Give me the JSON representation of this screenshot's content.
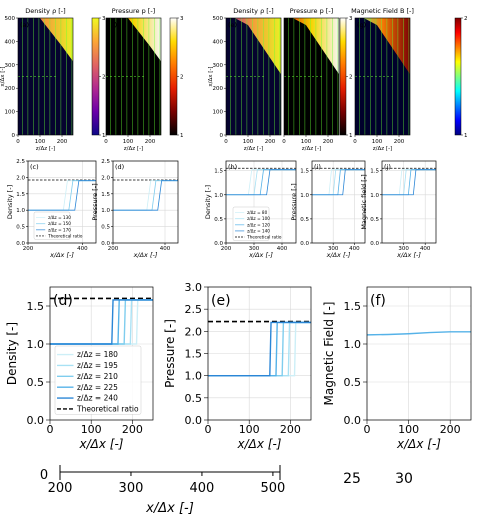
{
  "colors": {
    "density_cmap": [
      "#0d0887",
      "#6a00a8",
      "#b12a90",
      "#e16462",
      "#fca636",
      "#f0f921"
    ],
    "pressure_cmap": [
      "#000000",
      "#780000",
      "#e61e00",
      "#ff7800",
      "#ffdc00",
      "#ffffff"
    ],
    "bfield_cmap": [
      "#00007f",
      "#0000ff",
      "#007fff",
      "#00ffff",
      "#7fff7f",
      "#ffff00",
      "#ff7f00",
      "#ff0000",
      "#7f0000"
    ],
    "streamline": "#66ff33",
    "series": [
      "#cdeff7",
      "#a8e1f4",
      "#7fcdee",
      "#55b2e8",
      "#2b86d6"
    ],
    "theory": "#000000",
    "grid": "#d9d9d9"
  },
  "chart_data": [
    {
      "id": "map-a",
      "type": "heatmap",
      "panel_label": "(a)",
      "title": "Density ρ [-]",
      "cmap": "density_cmap",
      "field": "density",
      "xlabel": "z/Δz [-]",
      "ylabel": "x/Δx [-]",
      "xlim": [
        0,
        250
      ],
      "ylim": [
        0,
        500
      ],
      "xticks": [
        0,
        100,
        200
      ],
      "yticks": [
        0,
        100,
        200,
        300,
        400,
        500
      ],
      "colorbar": {
        "min": 1,
        "max": 3,
        "ticks": [
          1,
          2,
          3
        ]
      },
      "shock_front": [
        [
          0,
          520
        ],
        [
          100,
          500
        ],
        [
          200,
          380
        ],
        [
          250,
          315
        ]
      ],
      "streamlines_z": [
        20,
        45,
        70,
        95,
        120,
        145,
        170,
        195,
        220,
        245
      ]
    },
    {
      "id": "map-b",
      "type": "heatmap",
      "panel_label": "(b)",
      "title": "Pressure p [-]",
      "cmap": "pressure_cmap",
      "field": "pressure",
      "xlabel": "z/Δz [-]",
      "ylabel": "",
      "xlim": [
        0,
        250
      ],
      "ylim": [
        0,
        500
      ],
      "xticks": [
        0,
        100,
        200
      ],
      "yticks": [],
      "colorbar": {
        "min": 1,
        "max": 3,
        "ticks": [
          1,
          2,
          3
        ]
      },
      "shock_front": [
        [
          0,
          520
        ],
        [
          100,
          500
        ],
        [
          200,
          380
        ],
        [
          250,
          315
        ]
      ],
      "streamlines_z": [
        20,
        45,
        70,
        95,
        120,
        145,
        170,
        195,
        220,
        245
      ]
    },
    {
      "id": "map-e",
      "type": "heatmap",
      "panel_label": "(e)",
      "title": "Density ρ [-]",
      "cmap": "density_cmap",
      "field": "density",
      "xlabel": "z/Δz [-]",
      "ylabel": "x/Δx [-]",
      "xlim": [
        0,
        250
      ],
      "ylim": [
        0,
        500
      ],
      "xticks": [
        0,
        100,
        200
      ],
      "yticks": [
        0,
        100,
        200,
        300,
        400,
        500
      ],
      "colorbar": null,
      "shock_front": [
        [
          0,
          520
        ],
        [
          100,
          470
        ],
        [
          200,
          330
        ],
        [
          250,
          260
        ]
      ],
      "streamlines_z": [
        20,
        45,
        70,
        95,
        120,
        145,
        170,
        195,
        220,
        245
      ]
    },
    {
      "id": "map-f",
      "type": "heatmap",
      "panel_label": "(f)",
      "title": "Pressure p [-]",
      "cmap": "pressure_cmap",
      "field": "pressure",
      "xlabel": "z/Δz [-]",
      "ylabel": "",
      "xlim": [
        0,
        250
      ],
      "ylim": [
        0,
        500
      ],
      "xticks": [
        0,
        100,
        200
      ],
      "yticks": [],
      "colorbar": {
        "min": 1,
        "max": 3,
        "ticks": [
          1,
          2,
          3
        ]
      },
      "shock_front": [
        [
          0,
          520
        ],
        [
          100,
          470
        ],
        [
          200,
          330
        ],
        [
          250,
          260
        ]
      ],
      "streamlines_z": [
        20,
        45,
        70,
        95,
        120,
        145,
        170,
        195,
        220,
        245
      ]
    },
    {
      "id": "map-g",
      "type": "heatmap",
      "panel_label": "(g)",
      "title": "Magnetic Field B [-]",
      "cmap": "bfield_cmap",
      "field": "bfield",
      "xlabel": "z/Δz [-]",
      "ylabel": "",
      "xlim": [
        0,
        250
      ],
      "ylim": [
        0,
        500
      ],
      "xticks": [
        0,
        100,
        200
      ],
      "yticks": [],
      "colorbar": {
        "min": 1,
        "max": 2,
        "ticks": [
          1,
          2
        ]
      },
      "shock_front": [
        [
          0,
          520
        ],
        [
          100,
          470
        ],
        [
          200,
          330
        ],
        [
          250,
          260
        ]
      ],
      "streamlines_z": [
        20,
        45,
        70,
        95,
        120,
        145,
        170,
        195,
        220,
        245
      ]
    },
    {
      "id": "prof-c",
      "type": "line",
      "panel_label": "(c)",
      "xlabel": "x/Δx [-]",
      "ylabel": "Density [-]",
      "xlim": [
        200,
        450
      ],
      "ylim": [
        0,
        2.5
      ],
      "xticks": [
        200,
        400
      ],
      "yticks": [
        0.0,
        0.5,
        1.0,
        1.5,
        2.0,
        2.5
      ],
      "theory": 1.92,
      "series": [
        {
          "name": "z/Δz = 130",
          "x": [
            200,
            330,
            345,
            450
          ],
          "y": [
            1.0,
            1.0,
            1.9,
            1.9
          ]
        },
        {
          "name": "z/Δz = 150",
          "x": [
            200,
            350,
            365,
            450
          ],
          "y": [
            1.0,
            1.0,
            1.9,
            1.9
          ]
        },
        {
          "name": "z/Δz = 170",
          "x": [
            200,
            372,
            387,
            450
          ],
          "y": [
            1.0,
            1.0,
            1.9,
            1.9
          ]
        }
      ],
      "legend": [
        "z/Δz = 130",
        "z/Δz = 150",
        "z/Δz = 170",
        "Theoretical ratio"
      ]
    },
    {
      "id": "prof-d",
      "type": "line",
      "panel_label": "(d)",
      "xlabel": "x/Δx [-]",
      "ylabel": "Pressure [-]",
      "xlim": [
        200,
        450
      ],
      "ylim": [
        0,
        2.5
      ],
      "xticks": [
        200,
        400
      ],
      "yticks": [
        0.0,
        0.5,
        1.0,
        1.5,
        2.0,
        2.5
      ],
      "theory": 1.92,
      "series": [
        {
          "name": "z/Δz = 130",
          "x": [
            200,
            330,
            345,
            450
          ],
          "y": [
            1.0,
            1.0,
            1.9,
            1.9
          ]
        },
        {
          "name": "z/Δz = 150",
          "x": [
            200,
            350,
            365,
            450
          ],
          "y": [
            1.0,
            1.0,
            1.9,
            1.9
          ]
        },
        {
          "name": "z/Δz = 170",
          "x": [
            200,
            372,
            387,
            450
          ],
          "y": [
            1.0,
            1.0,
            1.9,
            1.9
          ]
        }
      ],
      "legend": []
    },
    {
      "id": "prof-h",
      "type": "line",
      "panel_label": "(h)",
      "xlabel": "x/Δx [-]",
      "ylabel": "Density [-]",
      "xlim": [
        200,
        450
      ],
      "ylim": [
        0,
        1.7
      ],
      "xticks": [
        200,
        300,
        400
      ],
      "yticks": [
        0.0,
        0.5,
        1.0,
        1.5
      ],
      "theory": 1.55,
      "series": [
        {
          "name": "z/Δz = 80",
          "x": [
            200,
            280,
            292,
            450
          ],
          "y": [
            1.0,
            1.0,
            1.52,
            1.52
          ]
        },
        {
          "name": "z/Δz = 100",
          "x": [
            200,
            300,
            312,
            450
          ],
          "y": [
            1.0,
            1.0,
            1.52,
            1.52
          ]
        },
        {
          "name": "z/Δz = 120",
          "x": [
            200,
            322,
            334,
            450
          ],
          "y": [
            1.0,
            1.0,
            1.52,
            1.52
          ]
        },
        {
          "name": "z/Δz = 140",
          "x": [
            200,
            345,
            357,
            450
          ],
          "y": [
            1.0,
            1.0,
            1.52,
            1.52
          ]
        }
      ],
      "legend": [
        "z/Δz = 80",
        "z/Δz = 100",
        "z/Δz = 120",
        "z/Δz = 140",
        "Theoretical ratio"
      ]
    },
    {
      "id": "prof-i",
      "type": "line",
      "panel_label": "(i)",
      "xlabel": "x/Δx [-]",
      "ylabel": "Pressure [-]",
      "xlim": [
        200,
        450
      ],
      "ylim": [
        0,
        1.7
      ],
      "xticks": [
        300,
        400
      ],
      "yticks": [
        0.0,
        0.5,
        1.0,
        1.5
      ],
      "theory": 1.55,
      "series": [
        {
          "name": "z/Δz = 80",
          "x": [
            200,
            280,
            292,
            450
          ],
          "y": [
            1.0,
            1.0,
            1.52,
            1.52
          ]
        },
        {
          "name": "z/Δz = 100",
          "x": [
            200,
            300,
            312,
            450
          ],
          "y": [
            1.0,
            1.0,
            1.52,
            1.52
          ]
        },
        {
          "name": "z/Δz = 120",
          "x": [
            200,
            322,
            334,
            450
          ],
          "y": [
            1.0,
            1.0,
            1.52,
            1.52
          ]
        },
        {
          "name": "z/Δz = 140",
          "x": [
            200,
            345,
            357,
            450
          ],
          "y": [
            1.0,
            1.0,
            1.52,
            1.52
          ]
        }
      ],
      "legend": []
    },
    {
      "id": "prof-j",
      "type": "line",
      "panel_label": "(j)",
      "xlabel": "x/Δx [-]",
      "ylabel": "Magnetic field [-]",
      "xlim": [
        200,
        450
      ],
      "ylim": [
        0,
        1.7
      ],
      "xticks": [
        300,
        400
      ],
      "yticks": [
        0.0,
        0.5,
        1.0,
        1.5
      ],
      "theory": 1.55,
      "series": [
        {
          "name": "z/Δz = 80",
          "x": [
            200,
            280,
            292,
            450
          ],
          "y": [
            1.0,
            1.0,
            1.52,
            1.52
          ]
        },
        {
          "name": "z/Δz = 100",
          "x": [
            200,
            300,
            312,
            450
          ],
          "y": [
            1.0,
            1.0,
            1.52,
            1.52
          ]
        },
        {
          "name": "z/Δz = 120",
          "x": [
            200,
            322,
            334,
            450
          ],
          "y": [
            1.0,
            1.0,
            1.52,
            1.52
          ]
        },
        {
          "name": "z/Δz = 140",
          "x": [
            200,
            345,
            357,
            450
          ],
          "y": [
            1.0,
            1.0,
            1.52,
            1.52
          ]
        }
      ],
      "legend": []
    },
    {
      "id": "big-d",
      "type": "line",
      "panel_label": "(d)",
      "xlabel": "x/Δx [-]",
      "ylabel": "Density [-]",
      "xlim": [
        0,
        250
      ],
      "ylim": [
        0,
        1.75
      ],
      "xticks": [
        0,
        100,
        200
      ],
      "yticks": [
        0.0,
        0.5,
        1.0,
        1.5
      ],
      "theory": 1.6,
      "series": [
        {
          "name": "z/Δz = 180",
          "x": [
            0,
            210,
            213,
            250
          ],
          "y": [
            1.0,
            1.0,
            1.58,
            1.58
          ]
        },
        {
          "name": "z/Δz = 195",
          "x": [
            0,
            195,
            198,
            250
          ],
          "y": [
            1.0,
            1.0,
            1.58,
            1.58
          ]
        },
        {
          "name": "z/Δz = 210",
          "x": [
            0,
            180,
            183,
            250
          ],
          "y": [
            1.0,
            1.0,
            1.58,
            1.58
          ]
        },
        {
          "name": "z/Δz = 225",
          "x": [
            0,
            165,
            168,
            250
          ],
          "y": [
            1.0,
            1.0,
            1.58,
            1.58
          ]
        },
        {
          "name": "z/Δz = 240",
          "x": [
            0,
            150,
            153,
            250
          ],
          "y": [
            1.0,
            1.0,
            1.58,
            1.58
          ]
        }
      ],
      "legend": [
        "z/Δz = 180",
        "z/Δz = 195",
        "z/Δz = 210",
        "z/Δz = 225",
        "z/Δz = 240",
        "Theoretical ratio"
      ]
    },
    {
      "id": "big-e",
      "type": "line",
      "panel_label": "(e)",
      "xlabel": "x/Δx [-]",
      "ylabel": "Pressure [-]",
      "xlim": [
        0,
        250
      ],
      "ylim": [
        0,
        3.0
      ],
      "xticks": [
        0,
        100,
        200
      ],
      "yticks": [
        0.0,
        0.5,
        1.0,
        1.5,
        2.0,
        2.5,
        3.0
      ],
      "theory": 2.22,
      "series": [
        {
          "name": "z/Δz = 180",
          "x": [
            0,
            210,
            213,
            250
          ],
          "y": [
            1.0,
            1.0,
            2.2,
            2.2
          ]
        },
        {
          "name": "z/Δz = 195",
          "x": [
            0,
            195,
            198,
            250
          ],
          "y": [
            1.0,
            1.0,
            2.2,
            2.2
          ]
        },
        {
          "name": "z/Δz = 210",
          "x": [
            0,
            180,
            183,
            250
          ],
          "y": [
            1.0,
            1.0,
            2.2,
            2.2
          ]
        },
        {
          "name": "z/Δz = 225",
          "x": [
            0,
            165,
            168,
            250
          ],
          "y": [
            1.0,
            1.0,
            2.2,
            2.2
          ]
        },
        {
          "name": "z/Δz = 240",
          "x": [
            0,
            150,
            153,
            250
          ],
          "y": [
            1.0,
            1.0,
            2.2,
            2.2
          ]
        }
      ],
      "legend": []
    },
    {
      "id": "big-f",
      "type": "line",
      "panel_label": "(f)",
      "xlabel": "x/Δx [-]",
      "ylabel": "Magnetic Field [-]",
      "xlim": [
        0,
        250
      ],
      "ylim": [
        0,
        1.75
      ],
      "xticks": [
        0,
        100,
        200
      ],
      "yticks": [
        0.0,
        0.5,
        1.0,
        1.5
      ],
      "theory": null,
      "series": [
        {
          "name": "z/Δz = 240",
          "x": [
            0,
            50,
            100,
            150,
            200,
            250
          ],
          "y": [
            1.12,
            1.125,
            1.135,
            1.15,
            1.16,
            1.16
          ]
        }
      ],
      "legend": []
    }
  ],
  "bottom_axis": {
    "ytick": "0",
    "ticks": [
      "200",
      "300",
      "400",
      "500"
    ],
    "label": "x/Δx [-]",
    "xlim": [
      200,
      510
    ]
  },
  "stray_labels": [
    "25",
    "30"
  ]
}
